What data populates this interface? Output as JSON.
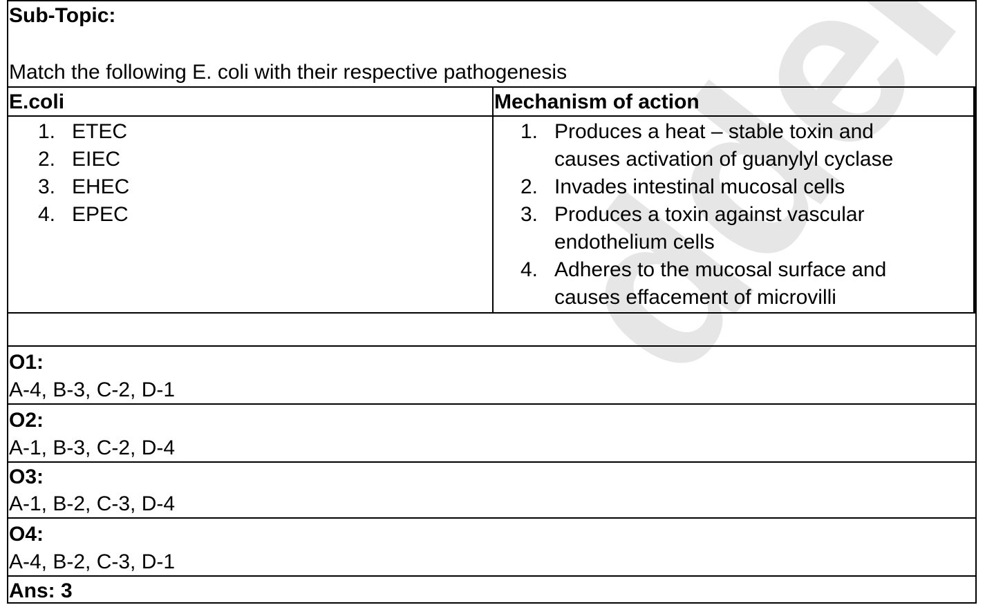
{
  "sub_topic_label": "Sub-Topic:",
  "question": "Match the following E. coli with their respective pathogenesis",
  "columns": {
    "left_header": "E.coli",
    "right_header": "Mechanism of action"
  },
  "left_items": [
    {
      "num": "1.",
      "text": "ETEC"
    },
    {
      "num": "2.",
      "text": "EIEC"
    },
    {
      "num": "3.",
      "text": "EHEC"
    },
    {
      "num": "4.",
      "text": "EPEC"
    }
  ],
  "right_items": [
    {
      "num": "1.",
      "line1": "Produces a heat – stable toxin and",
      "line2": "causes activation of guanylyl cyclase"
    },
    {
      "num": "2.",
      "line1": "Invades intestinal mucosal cells",
      "line2": ""
    },
    {
      "num": "3.",
      "line1": "Produces a toxin against vascular",
      "line2": "endothelium cells"
    },
    {
      "num": "4.",
      "line1": "Adheres to the mucosal surface and",
      "line2": "causes effacement of microvilli"
    }
  ],
  "options": [
    {
      "label": "O1:",
      "value": "A-4, B-3, C-2, D-1"
    },
    {
      "label": "O2:",
      "value": "A-1, B-3, C-2, D-4"
    },
    {
      "label": "O3:",
      "value": "A-1, B-2, C-3, D-4"
    },
    {
      "label": "O4:",
      "value": "A-4, B-2, C-3, D-1"
    }
  ],
  "answer": "Ans: 3",
  "watermark": "dder"
}
